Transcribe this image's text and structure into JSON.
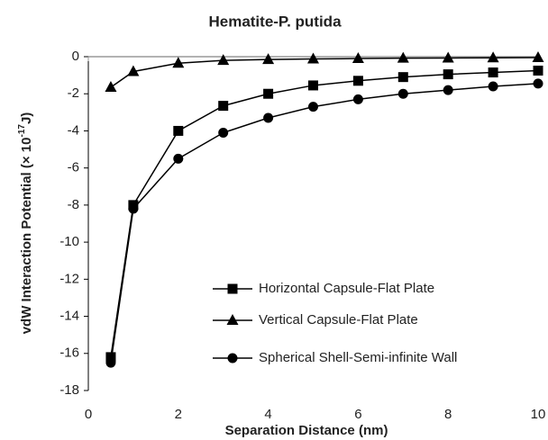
{
  "chart_data": {
    "type": "line",
    "title": "Hematite-P. putida",
    "x_label": "Separation Distance (nm)",
    "y_label": [
      "vdW Interaction Potential (× 10",
      "-17",
      "J)"
    ],
    "x": [
      0.5,
      1,
      2,
      3,
      4,
      5,
      6,
      7,
      8,
      9,
      10
    ],
    "series": [
      {
        "name": "Horizontal Capsule-Flat Plate",
        "color": "#000000",
        "marker": "square",
        "values": [
          -16.2,
          -8.0,
          -4.0,
          -2.65,
          -2.0,
          -1.55,
          -1.3,
          -1.1,
          -0.95,
          -0.85,
          -0.75
        ]
      },
      {
        "name": "Vertical Capsule-Flat Plate",
        "color": "#000000",
        "marker": "triangle",
        "values": [
          -1.65,
          -0.8,
          -0.35,
          -0.2,
          -0.15,
          -0.12,
          -0.1,
          -0.08,
          -0.07,
          -0.06,
          -0.05
        ]
      },
      {
        "name": "Spherical Shell-Semi-infinite Wall",
        "color": "#000000",
        "marker": "circle",
        "values": [
          -16.5,
          -8.2,
          -5.5,
          -4.1,
          -3.3,
          -2.7,
          -2.3,
          -2.0,
          -1.8,
          -1.6,
          -1.45
        ]
      }
    ],
    "xlim": [
      0,
      10
    ],
    "xticks": [
      0,
      2,
      4,
      6,
      8,
      10
    ],
    "ylim": [
      -18,
      0
    ],
    "yticks": [
      -18,
      -16,
      -14,
      -12,
      -10,
      -8,
      -6,
      -4,
      -2,
      0
    ],
    "legend": "lower right"
  }
}
